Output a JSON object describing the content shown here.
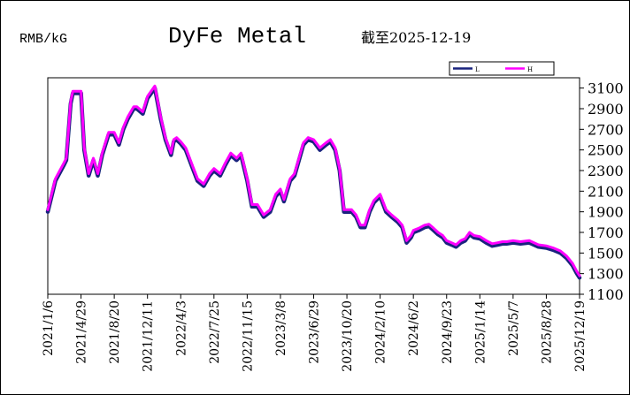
{
  "header": {
    "unit": "RMB/kG",
    "title": "DyFe Metal",
    "as_of": "截至2025-12-19"
  },
  "legend": {
    "items": [
      {
        "label": "L",
        "color": "#1a237e"
      },
      {
        "label": "H",
        "color": "#ff00ff"
      }
    ]
  },
  "colors": {
    "low": "#1a237e",
    "high": "#ff00ff"
  },
  "chart_data": {
    "type": "line",
    "ylim": [
      1100,
      3200
    ],
    "yticks": [
      1100,
      1300,
      1500,
      1700,
      1900,
      2100,
      2300,
      2500,
      2700,
      2900,
      3100
    ],
    "xticks": [
      "2021/1/6",
      "2021/4/29",
      "2021/8/20",
      "2021/12/11",
      "2022/4/3",
      "2022/7/25",
      "2022/11/15",
      "2023/3/8",
      "2023/6/29",
      "2023/10/20",
      "2024/2/10",
      "2024/6/2",
      "2024/9/23",
      "2025/1/14",
      "2025/5/7",
      "2025/8/28",
      "2025/12/19"
    ],
    "x": [
      "2021/1/6",
      "2021/2/1",
      "2021/3/1",
      "2021/3/10",
      "2021/3/25",
      "2021/4/1",
      "2021/4/29",
      "2021/5/10",
      "2021/5/25",
      "2021/6/10",
      "2021/6/25",
      "2021/7/10",
      "2021/8/1",
      "2021/8/20",
      "2021/9/5",
      "2021/9/20",
      "2021/10/5",
      "2021/10/25",
      "2021/11/5",
      "2021/11/25",
      "2021/12/11",
      "2022/1/5",
      "2022/1/25",
      "2022/2/10",
      "2022/3/1",
      "2022/3/10",
      "2022/3/20",
      "2022/4/3",
      "2022/4/20",
      "2022/5/10",
      "2022/5/30",
      "2022/6/20",
      "2022/7/10",
      "2022/7/25",
      "2022/8/15",
      "2022/9/1",
      "2022/9/20",
      "2022/10/10",
      "2022/10/25",
      "2022/11/15",
      "2022/12/1",
      "2022/12/20",
      "2023/1/10",
      "2023/2/1",
      "2023/2/20",
      "2023/3/8",
      "2023/3/20",
      "2023/4/10",
      "2023/4/25",
      "2023/5/10",
      "2023/5/25",
      "2023/6/10",
      "2023/6/29",
      "2023/7/20",
      "2023/8/10",
      "2023/8/25",
      "2023/9/10",
      "2023/9/25",
      "2023/10/10",
      "2023/10/20",
      "2023/11/5",
      "2023/11/20",
      "2023/12/5",
      "2023/12/20",
      "2024/1/5",
      "2024/1/20",
      "2024/2/10",
      "2024/3/1",
      "2024/3/20",
      "2024/4/10",
      "2024/4/25",
      "2024/5/10",
      "2024/5/25",
      "2024/6/2",
      "2024/6/20",
      "2024/7/10",
      "2024/7/25",
      "2024/8/10",
      "2024/8/25",
      "2024/9/10",
      "2024/9/23",
      "2024/10/10",
      "2024/10/25",
      "2024/11/10",
      "2024/11/25",
      "2024/12/10",
      "2024/12/25",
      "2025/1/14",
      "2025/2/5",
      "2025/2/25",
      "2025/3/15",
      "2025/4/1",
      "2025/4/15",
      "2025/5/7",
      "2025/6/1",
      "2025/7/1",
      "2025/8/1",
      "2025/8/28",
      "2025/9/20",
      "2025/10/15",
      "2025/11/5",
      "2025/11/25",
      "2025/12/10",
      "2025/12/19"
    ],
    "series": [
      {
        "name": "L",
        "values": [
          1900,
          2200,
          2350,
          2400,
          2950,
          3050,
          3050,
          2500,
          2250,
          2400,
          2250,
          2450,
          2650,
          2650,
          2550,
          2700,
          2800,
          2900,
          2900,
          2850,
          3000,
          3100,
          2800,
          2600,
          2450,
          2580,
          2600,
          2560,
          2500,
          2350,
          2200,
          2150,
          2250,
          2300,
          2250,
          2350,
          2450,
          2400,
          2450,
          2200,
          1950,
          1950,
          1850,
          1900,
          2050,
          2100,
          2000,
          2200,
          2250,
          2400,
          2550,
          2600,
          2580,
          2500,
          2550,
          2580,
          2500,
          2300,
          1900,
          1900,
          1900,
          1850,
          1750,
          1750,
          1900,
          1990,
          2050,
          1900,
          1850,
          1800,
          1750,
          1600,
          1650,
          1700,
          1720,
          1750,
          1760,
          1720,
          1680,
          1650,
          1600,
          1580,
          1560,
          1600,
          1620,
          1680,
          1650,
          1640,
          1600,
          1570,
          1580,
          1590,
          1590,
          1600,
          1590,
          1600,
          1560,
          1550,
          1530,
          1500,
          1450,
          1380,
          1300,
          1260
        ]
      },
      {
        "name": "H",
        "values": [
          1920,
          2220,
          2370,
          2420,
          2970,
          3070,
          3070,
          2520,
          2270,
          2420,
          2270,
          2470,
          2670,
          2670,
          2570,
          2720,
          2820,
          2920,
          2920,
          2870,
          3020,
          3120,
          2820,
          2620,
          2470,
          2600,
          2620,
          2580,
          2520,
          2370,
          2220,
          2170,
          2270,
          2320,
          2270,
          2370,
          2470,
          2420,
          2470,
          2220,
          1970,
          1970,
          1870,
          1920,
          2070,
          2120,
          2020,
          2220,
          2270,
          2420,
          2570,
          2620,
          2600,
          2520,
          2570,
          2600,
          2520,
          2320,
          1920,
          1920,
          1920,
          1870,
          1770,
          1770,
          1920,
          2010,
          2070,
          1920,
          1870,
          1820,
          1770,
          1620,
          1670,
          1720,
          1740,
          1770,
          1780,
          1740,
          1700,
          1670,
          1620,
          1600,
          1580,
          1620,
          1640,
          1700,
          1670,
          1660,
          1620,
          1590,
          1600,
          1610,
          1610,
          1620,
          1610,
          1620,
          1580,
          1570,
          1550,
          1520,
          1470,
          1400,
          1320,
          1280
        ]
      }
    ]
  }
}
